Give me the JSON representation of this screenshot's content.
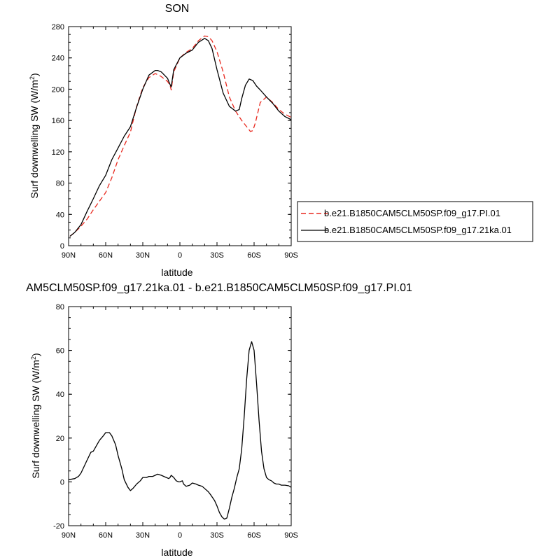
{
  "chart_data": [
    {
      "type": "line",
      "title": "SON",
      "xlabel": "latitude",
      "ylabel_main": "Surf downwelling SW (W/m",
      "ylabel_sup": "2",
      "ylabel_tail": ")",
      "x_tick_labels": [
        "90N",
        "60N",
        "30N",
        "0",
        "30S",
        "60S",
        "90S"
      ],
      "x_tick_values": [
        90,
        60,
        30,
        0,
        -30,
        -60,
        -90
      ],
      "xlim": [
        90,
        -90
      ],
      "ylim": [
        0,
        280
      ],
      "y_ticks": [
        0,
        40,
        80,
        120,
        160,
        200,
        240,
        280
      ],
      "grid": false,
      "legend_position": "right",
      "series": [
        {
          "name": "b.e21.B1850CAM5CLM50SP.f09_g17.PI.01",
          "color": "#e8281e",
          "dash": "dashed",
          "x": [
            89,
            85,
            80,
            75,
            70,
            65,
            60,
            55,
            50,
            45,
            40,
            35,
            30,
            25,
            20,
            17,
            15,
            10,
            8,
            7,
            5,
            0,
            -5,
            -10,
            -15,
            -20,
            -23,
            -26,
            -30,
            -35,
            -40,
            -45,
            -50,
            -55,
            -57,
            -59,
            -61,
            -65,
            -70,
            -75,
            -80,
            -85,
            -90
          ],
          "y": [
            12,
            17,
            25,
            34,
            46,
            57,
            68,
            87,
            110,
            128,
            145,
            178,
            202,
            215,
            220,
            218,
            216,
            210,
            205,
            199,
            222,
            240,
            247,
            252,
            262,
            268,
            267,
            262,
            248,
            222,
            190,
            172,
            160,
            150,
            146,
            147,
            157,
            183,
            190,
            183,
            174,
            168,
            164
          ]
        },
        {
          "name": "b.e21.B1850CAM5CLM50SP.f09_g17.21ka.01",
          "color": "#000000",
          "dash": "solid",
          "x": [
            89,
            85,
            80,
            75,
            70,
            65,
            60,
            55,
            50,
            45,
            40,
            35,
            30,
            25,
            20,
            18,
            15,
            10,
            8,
            7,
            5,
            0,
            -5,
            -10,
            -15,
            -20,
            -23,
            -26,
            -30,
            -35,
            -40,
            -45,
            -48,
            -50,
            -53,
            -56,
            -59,
            -62,
            -65,
            -70,
            -75,
            -80,
            -85,
            -90
          ],
          "y": [
            12,
            17,
            27,
            44,
            60,
            77,
            90,
            110,
            125,
            140,
            152,
            177,
            200,
            218,
            224,
            224,
            222,
            214,
            206,
            203,
            225,
            240,
            246,
            250,
            260,
            265,
            262,
            252,
            225,
            195,
            178,
            172,
            174,
            188,
            205,
            213,
            211,
            204,
            199,
            190,
            182,
            172,
            165,
            161
          ]
        }
      ]
    },
    {
      "type": "line",
      "title": "AM5CLM50SP.f09_g17.21ka.01 - b.e21.B1850CAM5CLM50SP.f09_g17.PI.01",
      "xlabel": "latitude",
      "ylabel_main": "Surf downwelling SW (W/m",
      "ylabel_sup": "2",
      "ylabel_tail": ")",
      "x_tick_labels": [
        "90N",
        "60N",
        "30N",
        "0",
        "30S",
        "60S",
        "90S"
      ],
      "x_tick_values": [
        90,
        60,
        30,
        0,
        -30,
        -60,
        -90
      ],
      "xlim": [
        90,
        -90
      ],
      "ylim": [
        -20,
        80
      ],
      "y_ticks": [
        -20,
        0,
        20,
        40,
        60,
        80
      ],
      "grid": false,
      "series": [
        {
          "color": "#000000",
          "dash": "solid",
          "x": [
            90,
            85,
            82,
            80,
            75,
            72,
            70,
            67,
            65,
            62,
            60,
            57,
            55,
            52,
            50,
            47,
            45,
            42,
            40,
            38,
            35,
            32,
            30,
            27,
            25,
            22,
            20,
            18,
            15,
            13,
            11,
            9,
            8,
            7,
            5,
            3,
            1,
            0,
            -2,
            -3,
            -5,
            -8,
            -10,
            -13,
            -15,
            -18,
            -20,
            -23,
            -25,
            -28,
            -30,
            -32,
            -34,
            -36,
            -38,
            -40,
            -42,
            -44,
            -46,
            -48,
            -50,
            -52,
            -54,
            -56,
            -58,
            -60,
            -62,
            -64,
            -66,
            -68,
            -70,
            -72,
            -74,
            -76,
            -78,
            -80,
            -82,
            -85,
            -88,
            -90
          ],
          "y": [
            1,
            1.5,
            2.5,
            4,
            10,
            13.5,
            14,
            17,
            19,
            21,
            22.5,
            22.5,
            21,
            17,
            12,
            6,
            1,
            -2.5,
            -4,
            -3,
            -1,
            0.5,
            2,
            2,
            2.5,
            2.5,
            3,
            3.5,
            3,
            2.5,
            2,
            1.5,
            2,
            3,
            2,
            0.5,
            0,
            0,
            0.5,
            -1,
            -2,
            -1.5,
            -0.5,
            -1,
            -1.5,
            -2,
            -3,
            -4.5,
            -6,
            -8.5,
            -11,
            -14,
            -16,
            -17,
            -16.5,
            -12,
            -7,
            -3,
            2,
            6,
            15,
            30,
            47,
            60,
            64,
            60,
            45,
            28,
            14,
            6,
            2,
            1,
            0.5,
            -0.5,
            -1,
            -1,
            -1.5,
            -1.5,
            -1.8,
            -2.5
          ]
        }
      ]
    }
  ]
}
